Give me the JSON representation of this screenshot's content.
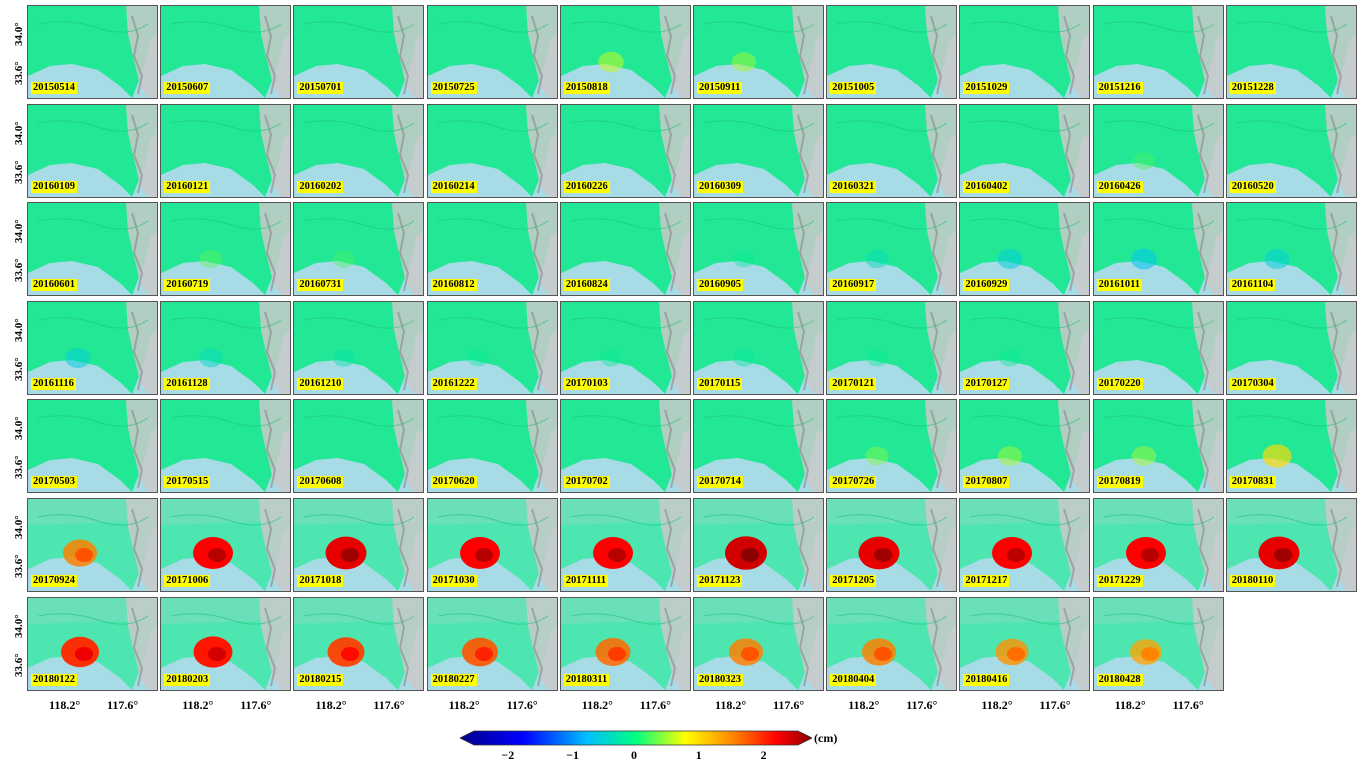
{
  "dates": [
    "20150514",
    "20150607",
    "20150701",
    "20150725",
    "20150818",
    "20150911",
    "20151005",
    "20151029",
    "20151216",
    "20151228",
    "20160109",
    "20160121",
    "20160202",
    "20160214",
    "20160226",
    "20160309",
    "20160321",
    "20160402",
    "20160426",
    "20160520",
    "20160601",
    "20160719",
    "20160731",
    "20160812",
    "20160824",
    "20160905",
    "20160917",
    "20160929",
    "20161011",
    "20161104",
    "20161116",
    "20161128",
    "20161210",
    "20161222",
    "20170103",
    "20170115",
    "20170121",
    "20170127",
    "20170220",
    "20170304",
    "20170503",
    "20170515",
    "20170608",
    "20170620",
    "20170702",
    "20170714",
    "20170726",
    "20170807",
    "20170819",
    "20170831",
    "20170924",
    "20171006",
    "20171018",
    "20171030",
    "20171111",
    "20171123",
    "20171205",
    "20171217",
    "20171229",
    "20180110",
    "20180122",
    "20180203",
    "20180215",
    "20180227",
    "20180311",
    "20180323",
    "20180404",
    "20180416",
    "20180428"
  ],
  "anomaly_cm": [
    0,
    0,
    0,
    0,
    0.55,
    0.45,
    0,
    0,
    0,
    0,
    0,
    0,
    0,
    0,
    0,
    0,
    0,
    0,
    0.2,
    0,
    0,
    0.25,
    0.2,
    0,
    0,
    -0.1,
    -0.3,
    -0.5,
    -0.6,
    -0.5,
    -0.5,
    -0.35,
    -0.2,
    -0.1,
    -0.1,
    -0.15,
    -0.1,
    -0.1,
    0,
    0,
    0,
    -0.05,
    0,
    0,
    0,
    0,
    0.35,
    0.45,
    0.45,
    0.9,
    1.4,
    2.0,
    2.1,
    2.0,
    2.0,
    2.2,
    2.1,
    2.0,
    2.0,
    2.1,
    1.8,
    1.9,
    1.7,
    1.6,
    1.5,
    1.4,
    1.4,
    1.3,
    1.2
  ],
  "latitude_labels": [
    "34.0°",
    "33.6°"
  ],
  "longitude_labels": [
    "118.2°",
    "117.6°"
  ],
  "colorbar": {
    "ticks": [
      "−2",
      "−1",
      "0",
      "1",
      "2"
    ],
    "unit": "(cm)",
    "range": [
      -2.5,
      2.5
    ],
    "colors": [
      "#00008b",
      "#0000ff",
      "#00bfff",
      "#00ff80",
      "#ffff00",
      "#ff8000",
      "#ff0000",
      "#8b0000"
    ]
  }
}
